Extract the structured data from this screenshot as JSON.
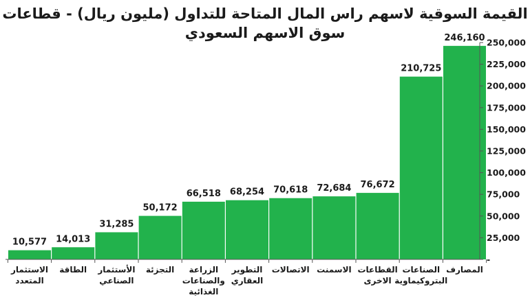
{
  "chart_data": {
    "type": "bar",
    "title_lines": [
      "القيمة السوقية لاسهم راس المال المتاحة للتداول (مليون ريال) - قطاعات",
      "سوق الاسهم السعودي"
    ],
    "categories": [
      [
        "الاستثمار",
        "المتعدد"
      ],
      [
        "الطاقة"
      ],
      [
        "الأستثمار",
        "الصناعي"
      ],
      [
        "التجزئة"
      ],
      [
        "الزراعة",
        "والصناعات",
        "الغذائية"
      ],
      [
        "التطوير",
        "العقاري"
      ],
      [
        "الاتصالات"
      ],
      [
        "الاسمنت"
      ],
      [
        "القطاعات",
        "الاخرى"
      ],
      [
        "الصناعات",
        "البتروكيماوية"
      ],
      [
        "المصارف"
      ]
    ],
    "values": [
      10577,
      14013,
      31285,
      50172,
      66518,
      68254,
      70618,
      72684,
      76672,
      210725,
      246160
    ],
    "value_labels": [
      "10,577",
      "14,013",
      "31,285",
      "50,172",
      "66,518",
      "68,254",
      "70,618",
      "72,684",
      "76,672",
      "210,725",
      "246,160"
    ],
    "y_ticks": [
      0,
      25000,
      50000,
      75000,
      100000,
      125000,
      150000,
      175000,
      200000,
      225000,
      250000
    ],
    "y_tick_labels": [
      "-",
      "25,000",
      "50,000",
      "75,000",
      "100,000",
      "125,000",
      "150,000",
      "175,000",
      "200,000",
      "225,000",
      "250,000"
    ],
    "ylim": [
      0,
      250000
    ],
    "y_axis_side": "right",
    "grid": false,
    "bar_color": "#22b24c",
    "axis_color": "#555555",
    "text_color": "#1a1a1a"
  }
}
